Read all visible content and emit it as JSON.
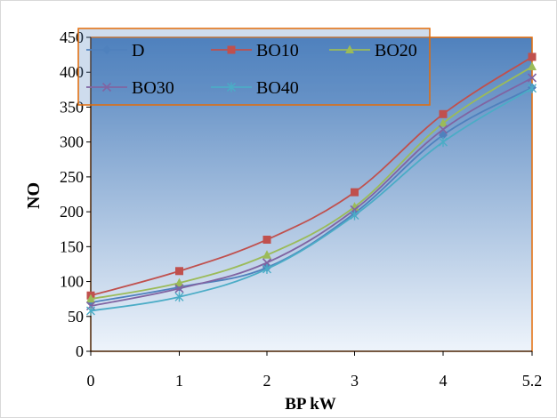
{
  "chart_data": {
    "type": "line",
    "title": "",
    "xlabel": "BP kW",
    "ylabel": "NO",
    "x": [
      "0",
      "1",
      "2",
      "3",
      "4",
      "5.2"
    ],
    "ylim": [
      0,
      450
    ],
    "yticks": [
      0,
      50,
      100,
      150,
      200,
      250,
      300,
      350,
      400,
      450
    ],
    "grid": false,
    "legend_position": "top-left",
    "colors": {
      "plot_gradient_top": "#4f81bd",
      "plot_gradient_bottom": "#eef4fb",
      "plot_border": "#e36c09",
      "legend_border": "#e36c09"
    },
    "series": [
      {
        "name": "D",
        "color": "#4f81bd",
        "marker": "diamond",
        "values": [
          70,
          92,
          120,
          198,
          310,
          378
        ]
      },
      {
        "name": "BO10",
        "color": "#c0504d",
        "marker": "square",
        "values": [
          80,
          115,
          160,
          228,
          340,
          422
        ]
      },
      {
        "name": "BO20",
        "color": "#9bbb59",
        "marker": "triangle",
        "values": [
          75,
          98,
          138,
          207,
          327,
          408
        ]
      },
      {
        "name": "BO30",
        "color": "#8064a2",
        "marker": "x",
        "values": [
          65,
          90,
          127,
          203,
          318,
          392
        ]
      },
      {
        "name": "BO40",
        "color": "#4bacc6",
        "marker": "star",
        "values": [
          58,
          78,
          118,
          195,
          300,
          377
        ]
      }
    ]
  }
}
